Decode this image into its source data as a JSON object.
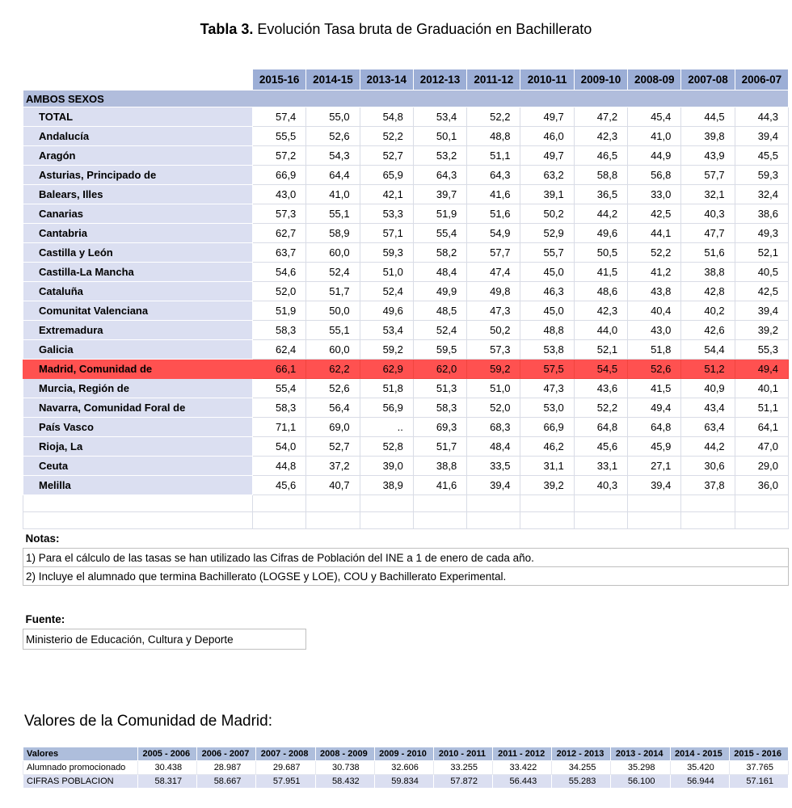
{
  "title": {
    "prefix": "Tabla 3.",
    "text": "Evolución Tasa bruta de Graduación en Bachillerato"
  },
  "main_table": {
    "group_header": "AMBOS SEXOS",
    "columns": [
      "2015-16",
      "2014-15",
      "2013-14",
      "2012-13",
      "2011-12",
      "2010-11",
      "2009-10",
      "2008-09",
      "2007-08",
      "2006-07"
    ],
    "rows": [
      {
        "label": "TOTAL",
        "highlight": false,
        "values": [
          "57,4",
          "55,0",
          "54,8",
          "53,4",
          "52,2",
          "49,7",
          "47,2",
          "45,4",
          "44,5",
          "44,3"
        ]
      },
      {
        "label": "Andalucía",
        "highlight": false,
        "values": [
          "55,5",
          "52,6",
          "52,2",
          "50,1",
          "48,8",
          "46,0",
          "42,3",
          "41,0",
          "39,8",
          "39,4"
        ]
      },
      {
        "label": "Aragón",
        "highlight": false,
        "values": [
          "57,2",
          "54,3",
          "52,7",
          "53,2",
          "51,1",
          "49,7",
          "46,5",
          "44,9",
          "43,9",
          "45,5"
        ]
      },
      {
        "label": "Asturias, Principado de",
        "highlight": false,
        "values": [
          "66,9",
          "64,4",
          "65,9",
          "64,3",
          "64,3",
          "63,2",
          "58,8",
          "56,8",
          "57,7",
          "59,3"
        ]
      },
      {
        "label": "Balears, Illes",
        "highlight": false,
        "values": [
          "43,0",
          "41,0",
          "42,1",
          "39,7",
          "41,6",
          "39,1",
          "36,5",
          "33,0",
          "32,1",
          "32,4"
        ]
      },
      {
        "label": "Canarias",
        "highlight": false,
        "values": [
          "57,3",
          "55,1",
          "53,3",
          "51,9",
          "51,6",
          "50,2",
          "44,2",
          "42,5",
          "40,3",
          "38,6"
        ]
      },
      {
        "label": "Cantabria",
        "highlight": false,
        "values": [
          "62,7",
          "58,9",
          "57,1",
          "55,4",
          "54,9",
          "52,9",
          "49,6",
          "44,1",
          "47,7",
          "49,3"
        ]
      },
      {
        "label": "Castilla y León",
        "highlight": false,
        "values": [
          "63,7",
          "60,0",
          "59,3",
          "58,2",
          "57,7",
          "55,7",
          "50,5",
          "52,2",
          "51,6",
          "52,1"
        ]
      },
      {
        "label": "Castilla-La Mancha",
        "highlight": false,
        "values": [
          "54,6",
          "52,4",
          "51,0",
          "48,4",
          "47,4",
          "45,0",
          "41,5",
          "41,2",
          "38,8",
          "40,5"
        ]
      },
      {
        "label": "Cataluña",
        "highlight": false,
        "values": [
          "52,0",
          "51,7",
          "52,4",
          "49,9",
          "49,8",
          "46,3",
          "48,6",
          "43,8",
          "42,8",
          "42,5"
        ]
      },
      {
        "label": "Comunitat Valenciana",
        "highlight": false,
        "values": [
          "51,9",
          "50,0",
          "49,6",
          "48,5",
          "47,3",
          "45,0",
          "42,3",
          "40,4",
          "40,2",
          "39,4"
        ]
      },
      {
        "label": "Extremadura",
        "highlight": false,
        "values": [
          "58,3",
          "55,1",
          "53,4",
          "52,4",
          "50,2",
          "48,8",
          "44,0",
          "43,0",
          "42,6",
          "39,2"
        ]
      },
      {
        "label": "Galicia",
        "highlight": false,
        "values": [
          "62,4",
          "60,0",
          "59,2",
          "59,5",
          "57,3",
          "53,8",
          "52,1",
          "51,8",
          "54,4",
          "55,3"
        ]
      },
      {
        "label": "Madrid, Comunidad de",
        "highlight": true,
        "values": [
          "66,1",
          "62,2",
          "62,9",
          "62,0",
          "59,2",
          "57,5",
          "54,5",
          "52,6",
          "51,2",
          "49,4"
        ]
      },
      {
        "label": "Murcia, Región de",
        "highlight": false,
        "values": [
          "55,4",
          "52,6",
          "51,8",
          "51,3",
          "51,0",
          "47,3",
          "43,6",
          "41,5",
          "40,9",
          "40,1"
        ]
      },
      {
        "label": "Navarra, Comunidad Foral de",
        "highlight": false,
        "values": [
          "58,3",
          "56,4",
          "56,9",
          "58,3",
          "52,0",
          "53,0",
          "52,2",
          "49,4",
          "43,4",
          "51,1"
        ]
      },
      {
        "label": "País Vasco",
        "highlight": false,
        "values": [
          "71,1",
          "69,0",
          "..",
          "69,3",
          "68,3",
          "66,9",
          "64,8",
          "64,8",
          "63,4",
          "64,1"
        ]
      },
      {
        "label": "Rioja, La",
        "highlight": false,
        "values": [
          "54,0",
          "52,7",
          "52,8",
          "51,7",
          "48,4",
          "46,2",
          "45,6",
          "45,9",
          "44,2",
          "47,0"
        ]
      },
      {
        "label": "Ceuta",
        "highlight": false,
        "values": [
          "44,8",
          "37,2",
          "39,0",
          "38,8",
          "33,5",
          "31,1",
          "33,1",
          "27,1",
          "30,6",
          "29,0"
        ]
      },
      {
        "label": "Melilla",
        "highlight": false,
        "values": [
          "45,6",
          "40,7",
          "38,9",
          "41,6",
          "39,4",
          "39,2",
          "40,3",
          "39,4",
          "37,8",
          "36,0"
        ]
      }
    ],
    "empty_rows": 2
  },
  "notes": {
    "heading": "Notas:",
    "items": [
      "1) Para el cálculo de las tasas se han utilizado las Cifras de  Población del INE a 1 de enero de cada año.",
      "2) Incluye el alumnado que termina Bachillerato (LOGSE y LOE), COU y  Bachillerato Experimental."
    ]
  },
  "source": {
    "heading": "Fuente:",
    "text": "Ministerio de Educación, Cultura y Deporte"
  },
  "madrid_section": {
    "heading": "Valores de la Comunidad de Madrid:",
    "table": {
      "label_header": "Valores",
      "columns": [
        "2005 - 2006",
        "2006 - 2007",
        "2007 - 2008",
        "2008 - 2009",
        "2009 - 2010",
        "2010 - 2011",
        "2011 - 2012",
        "2012 - 2013",
        "2013 - 2014",
        "2014 - 2015",
        "2015 - 2016"
      ],
      "rows": [
        {
          "label": "Alumnado promocionado",
          "values": [
            "30.438",
            "28.987",
            "29.687",
            "30.738",
            "32.606",
            "33.255",
            "33.422",
            "34.255",
            "35.298",
            "35.420",
            "37.765"
          ]
        },
        {
          "label": "CIFRAS POBLACION",
          "values": [
            "58.317",
            "58.667",
            "57.951",
            "58.432",
            "59.834",
            "57.872",
            "56.443",
            "55.283",
            "56.100",
            "56.944",
            "57.161"
          ]
        }
      ]
    }
  },
  "colors": {
    "year_header_bg": "#9CAED6",
    "group_row_bg": "#B1BDDC",
    "label_column_bg": "#DBDFF1",
    "highlight_row_bg": "#FF5150",
    "madrid_header_bg": "#AEBEDC",
    "madrid_alt_row_bg": "#DBDFF1"
  }
}
